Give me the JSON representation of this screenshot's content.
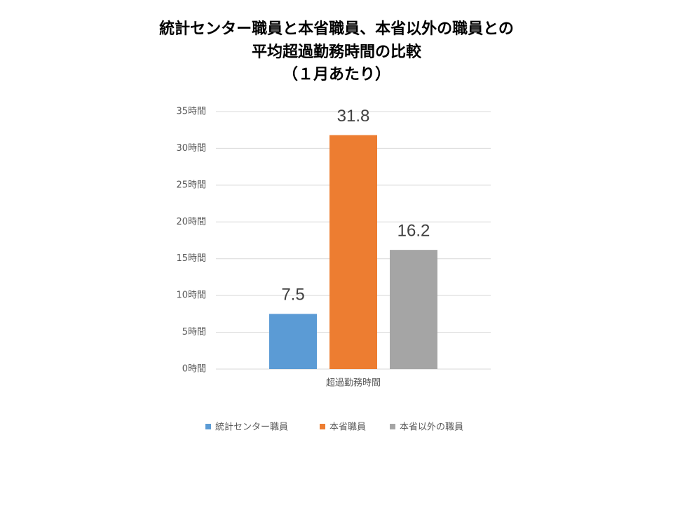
{
  "chart_data": {
    "type": "bar",
    "title": [
      "統計センター職員と本省職員、本省以外の職員との",
      "平均超過勤務時間の比較",
      "（１月あたり）"
    ],
    "categories": [
      "超過勤務時間"
    ],
    "series": [
      {
        "name": "統計センター職員",
        "color": "#5b9bd5",
        "values": [
          7.5
        ]
      },
      {
        "name": "本省職員",
        "color": "#ed7d31",
        "values": [
          31.8
        ]
      },
      {
        "name": "本省以外の職員",
        "color": "#a5a5a5",
        "values": [
          16.2
        ]
      }
    ],
    "ylim": [
      0,
      35
    ],
    "yticks": [
      {
        "value": 0,
        "label": "0時間"
      },
      {
        "value": 5,
        "label": "5時間"
      },
      {
        "value": 10,
        "label": "10時間"
      },
      {
        "value": 15,
        "label": "15時間"
      },
      {
        "value": 20,
        "label": "20時間"
      },
      {
        "value": 25,
        "label": "25時間"
      },
      {
        "value": 30,
        "label": "30時間"
      },
      {
        "value": 35,
        "label": "35時間"
      }
    ],
    "grid": true,
    "legend": "bottom"
  }
}
